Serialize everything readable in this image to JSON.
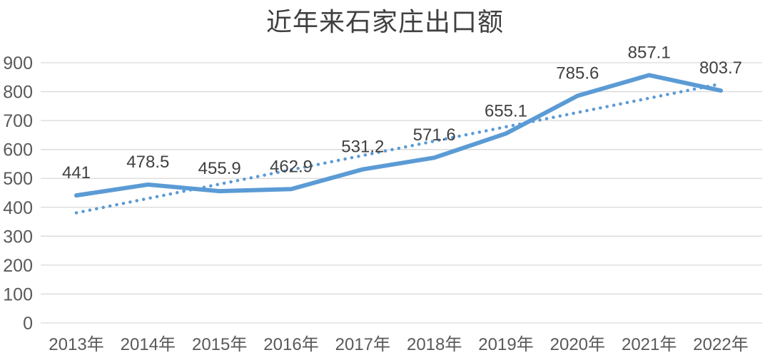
{
  "title": "近年来石家庄出口额",
  "chart_data": {
    "type": "line",
    "title": "近年来石家庄出口额",
    "categories": [
      "2013年",
      "2014年",
      "2015年",
      "2016年",
      "2017年",
      "2018年",
      "2019年",
      "2020年",
      "2021年",
      "2022年"
    ],
    "series": [
      {
        "name": "出口额",
        "style": "solid",
        "values": [
          441,
          478.5,
          455.9,
          462.9,
          531.2,
          571.6,
          655.1,
          785.6,
          857.1,
          803.7
        ],
        "labels": [
          "441",
          "478.5",
          "455.9",
          "462.9",
          "531.2",
          "571.6",
          "655.1",
          "785.6",
          "857.1",
          "803.7"
        ]
      },
      {
        "name": "linear-trendline",
        "style": "dotted",
        "start_value": 381,
        "end_value": 827
      }
    ],
    "yticks": [
      "0",
      "100",
      "200",
      "300",
      "400",
      "500",
      "600",
      "700",
      "800",
      "900"
    ],
    "ylim": [
      0,
      900
    ],
    "grid": true,
    "legend_position": "none",
    "colors": {
      "series_line": "#5B9BD5",
      "trendline": "#5B9BD5",
      "gridline": "#D9D9D9",
      "axis_label": "#595959",
      "data_label": "#404040",
      "title": "#404040",
      "background": "#FFFFFF"
    }
  }
}
